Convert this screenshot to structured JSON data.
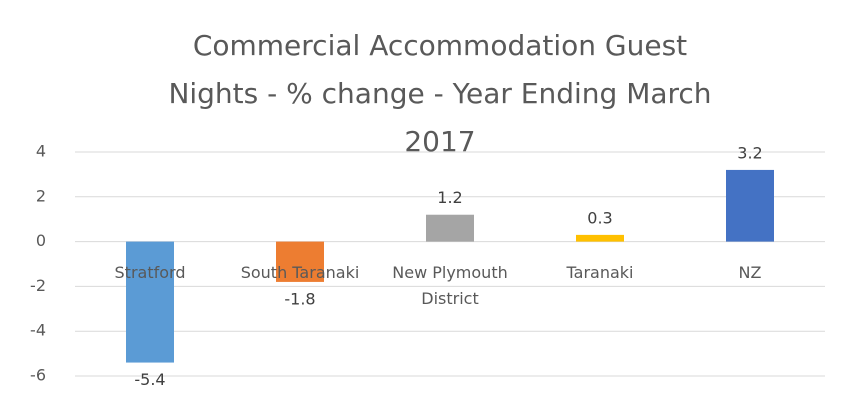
{
  "chart_data": {
    "type": "bar",
    "title": "Commercial Accommodation Guest Nights - % change - Year Ending March 2017",
    "categories": [
      "Stratford",
      "South Taranaki",
      "New Plymouth District",
      "Taranaki",
      "NZ"
    ],
    "values": [
      -5.4,
      -1.8,
      1.2,
      0.3,
      3.2
    ],
    "colors": [
      "#5b9bd5",
      "#ed7d31",
      "#a5a5a5",
      "#ffc000",
      "#4472c4"
    ],
    "ylim": [
      -6,
      4
    ],
    "yticks": [
      -6,
      -4,
      -2,
      0,
      2,
      4
    ],
    "grid": true
  }
}
